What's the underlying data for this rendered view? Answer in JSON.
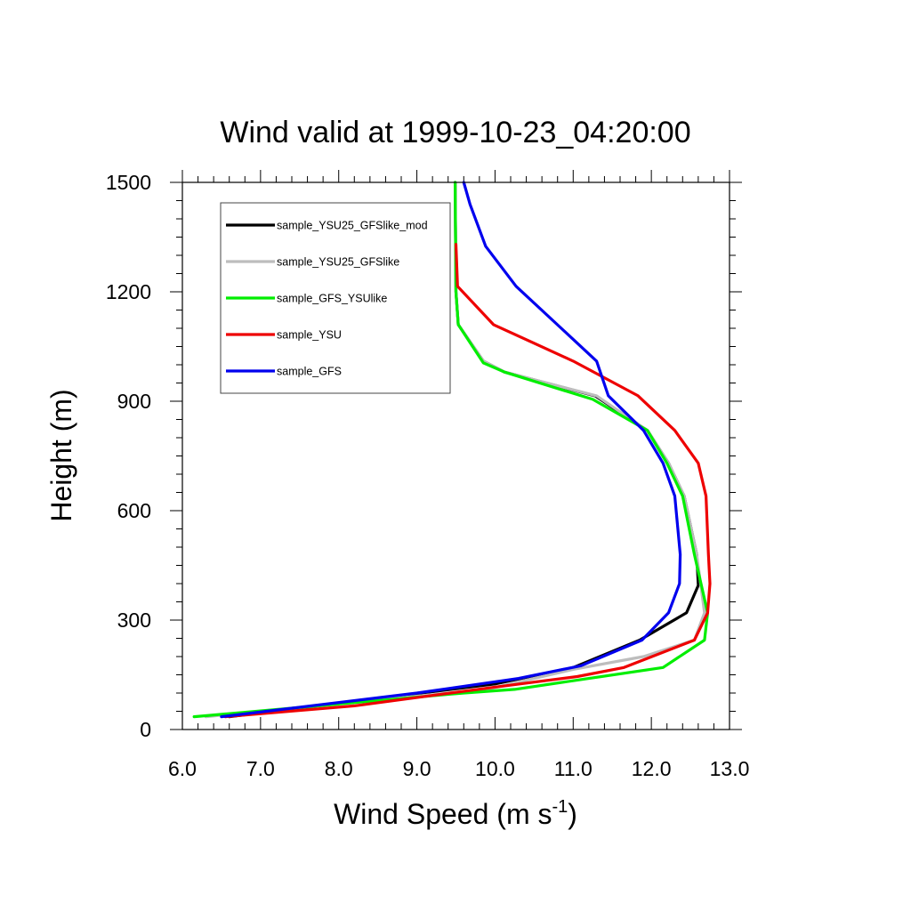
{
  "chart_data": {
    "type": "line",
    "title": "Wind valid at 1999-10-23_04:20:00",
    "xlabel_main": "Wind Speed (m s",
    "xlabel_sup": "-1",
    "xlabel_close": ")",
    "ylabel": "Height (m)",
    "xlim": [
      6.0,
      13.0
    ],
    "ylim": [
      0,
      1500
    ],
    "xticks": [
      6.0,
      7.0,
      8.0,
      9.0,
      10.0,
      11.0,
      12.0,
      13.0
    ],
    "xtick_labels": [
      "6.0",
      "7.0",
      "8.0",
      "9.0",
      "10.0",
      "11.0",
      "12.0",
      "13.0"
    ],
    "yticks": [
      0,
      300,
      600,
      900,
      1200,
      1500
    ],
    "ytick_labels": [
      "0",
      "300",
      "600",
      "900",
      "1200",
      "1500"
    ],
    "grid": false,
    "legend_position": "top-left",
    "series": [
      {
        "name": "sample_YSU25_GFSlike_mod",
        "color": "#000000",
        "points": [
          [
            6.6,
            35
          ],
          [
            10.0,
            125
          ],
          [
            11.0,
            170
          ],
          [
            11.85,
            245
          ],
          [
            12.45,
            320
          ],
          [
            12.6,
            395
          ],
          [
            12.58,
            480
          ],
          [
            12.42,
            640
          ],
          [
            12.22,
            730
          ],
          [
            11.95,
            820
          ],
          [
            11.28,
            915
          ],
          [
            10.12,
            980
          ],
          [
            9.85,
            1010
          ],
          [
            9.53,
            1110
          ],
          [
            9.5,
            1200
          ],
          [
            9.49,
            1500
          ]
        ]
      },
      {
        "name": "sample_YSU25_GFSlike",
        "color": "#bdbdbd",
        "points": [
          [
            6.3,
            35
          ],
          [
            9.9,
            110
          ],
          [
            10.5,
            140
          ],
          [
            11.0,
            165
          ],
          [
            11.9,
            200
          ],
          [
            12.55,
            245
          ],
          [
            12.68,
            320
          ],
          [
            12.58,
            480
          ],
          [
            12.42,
            640
          ],
          [
            12.22,
            730
          ],
          [
            11.95,
            820
          ],
          [
            11.3,
            915
          ],
          [
            10.12,
            980
          ],
          [
            9.85,
            1010
          ],
          [
            9.53,
            1110
          ],
          [
            9.5,
            1200
          ],
          [
            9.49,
            1500
          ]
        ]
      },
      {
        "name": "sample_GFS_YSUlike",
        "color": "#00ee00",
        "points": [
          [
            6.15,
            35
          ],
          [
            9.6,
            100
          ],
          [
            10.25,
            110
          ],
          [
            11.2,
            140
          ],
          [
            12.15,
            170
          ],
          [
            12.68,
            245
          ],
          [
            12.72,
            320
          ],
          [
            12.55,
            480
          ],
          [
            12.4,
            640
          ],
          [
            12.2,
            730
          ],
          [
            11.95,
            820
          ],
          [
            11.25,
            905
          ],
          [
            10.12,
            980
          ],
          [
            9.85,
            1005
          ],
          [
            9.53,
            1110
          ],
          [
            9.5,
            1200
          ],
          [
            9.49,
            1500
          ]
        ]
      },
      {
        "name": "sample_YSU",
        "color": "#ee0000",
        "points": [
          [
            6.55,
            35
          ],
          [
            8.2,
            65
          ],
          [
            9.95,
            115
          ],
          [
            11.05,
            145
          ],
          [
            11.65,
            170
          ],
          [
            12.55,
            245
          ],
          [
            12.72,
            320
          ],
          [
            12.75,
            400
          ],
          [
            12.73,
            480
          ],
          [
            12.7,
            640
          ],
          [
            12.6,
            730
          ],
          [
            12.3,
            820
          ],
          [
            11.83,
            915
          ],
          [
            11.0,
            1010
          ],
          [
            9.98,
            1110
          ],
          [
            9.52,
            1215
          ],
          [
            9.5,
            1330
          ]
        ]
      },
      {
        "name": "sample_GFS",
        "color": "#0000ee",
        "points": [
          [
            6.5,
            35
          ],
          [
            9.0,
            100
          ],
          [
            10.3,
            140
          ],
          [
            11.1,
            175
          ],
          [
            11.88,
            245
          ],
          [
            12.22,
            320
          ],
          [
            12.36,
            400
          ],
          [
            12.37,
            480
          ],
          [
            12.3,
            640
          ],
          [
            12.15,
            730
          ],
          [
            11.9,
            820
          ],
          [
            11.45,
            915
          ],
          [
            11.3,
            1010
          ],
          [
            10.27,
            1215
          ],
          [
            9.88,
            1325
          ],
          [
            9.68,
            1440
          ],
          [
            9.6,
            1500
          ]
        ]
      }
    ]
  }
}
